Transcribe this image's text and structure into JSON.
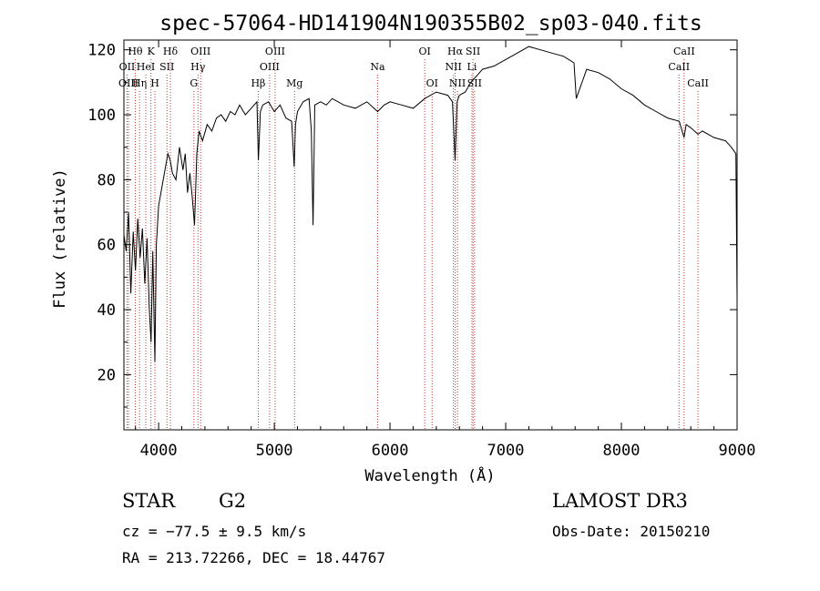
{
  "chart_data": {
    "type": "line",
    "title": "spec-57064-HD141904N190355B02_sp03-040.fits",
    "xlabel": "Wavelength (Å)",
    "ylabel": "Flux (relative)",
    "xlim": [
      3700,
      9000
    ],
    "ylim": [
      3,
      123
    ],
    "xticks": [
      4000,
      5000,
      6000,
      7000,
      8000,
      9000
    ],
    "yticks": [
      20,
      40,
      60,
      80,
      100,
      120
    ],
    "grid": false,
    "series": [
      {
        "name": "flux",
        "x": [
          3700,
          3720,
          3740,
          3760,
          3780,
          3800,
          3820,
          3840,
          3860,
          3880,
          3900,
          3920,
          3935,
          3950,
          3968,
          3980,
          4000,
          4030,
          4060,
          4080,
          4100,
          4120,
          4150,
          4180,
          4210,
          4230,
          4250,
          4270,
          4290,
          4310,
          4330,
          4350,
          4380,
          4420,
          4460,
          4500,
          4540,
          4580,
          4620,
          4660,
          4700,
          4750,
          4800,
          4850,
          4862,
          4880,
          4900,
          4950,
          5000,
          5050,
          5100,
          5150,
          5172,
          5183,
          5200,
          5250,
          5300,
          5320,
          5335,
          5350,
          5400,
          5450,
          5500,
          5600,
          5700,
          5800,
          5893,
          5950,
          6000,
          6100,
          6200,
          6300,
          6400,
          6500,
          6540,
          6563,
          6580,
          6600,
          6650,
          6700,
          6750,
          6800,
          6900,
          7000,
          7100,
          7200,
          7300,
          7400,
          7500,
          7590,
          7610,
          7700,
          7800,
          7900,
          8000,
          8100,
          8200,
          8300,
          8400,
          8500,
          8542,
          8560,
          8600,
          8662,
          8700,
          8800,
          8900,
          8950,
          8990,
          9000
        ],
        "y": [
          63,
          58,
          70,
          45,
          64,
          52,
          68,
          56,
          65,
          48,
          62,
          40,
          30,
          58,
          24,
          60,
          72,
          78,
          84,
          88,
          86,
          82,
          80,
          90,
          83,
          88,
          76,
          82,
          75,
          66,
          88,
          95,
          92,
          97,
          95,
          99,
          100,
          98,
          101,
          100,
          103,
          100,
          102,
          104,
          86,
          101,
          103,
          104,
          101,
          103,
          99,
          98,
          84,
          97,
          101,
          104,
          105,
          95,
          66,
          103,
          104,
          103,
          105,
          103,
          102,
          104,
          101,
          103,
          104,
          103,
          102,
          105,
          107,
          106,
          104,
          86,
          104,
          106,
          107,
          110,
          112,
          114,
          115,
          117,
          119,
          121,
          120,
          119,
          118,
          116,
          105,
          114,
          113,
          111,
          108,
          106,
          103,
          101,
          99,
          98,
          93,
          97,
          96,
          94,
          95,
          93,
          92,
          90,
          88,
          43
        ]
      }
    ],
    "lines": [
      {
        "name": "Hθ",
        "wl": 3798,
        "row": 1
      },
      {
        "name": "OII",
        "wl": 3727,
        "row": 2
      },
      {
        "name": "OIII",
        "wl": 3740,
        "row": 3
      },
      {
        "name": "Hη",
        "wl": 3835,
        "row": 3
      },
      {
        "name": "HeI",
        "wl": 3889,
        "row": 2
      },
      {
        "name": "K",
        "wl": 3934,
        "row": 1
      },
      {
        "name": "H",
        "wl": 3968,
        "row": 3
      },
      {
        "name": "SII",
        "wl": 4072,
        "row": 2
      },
      {
        "name": "Hδ",
        "wl": 4102,
        "row": 1
      },
      {
        "name": "OIII",
        "wl": 4363,
        "row": 1
      },
      {
        "name": "Hγ",
        "wl": 4340,
        "row": 2
      },
      {
        "name": "G",
        "wl": 4305,
        "row": 3
      },
      {
        "name": "Hβ",
        "wl": 4861,
        "row": 3
      },
      {
        "name": "OIII",
        "wl": 4959,
        "row": 2
      },
      {
        "name": "OIII",
        "wl": 5007,
        "row": 1
      },
      {
        "name": "Mg",
        "wl": 5175,
        "row": 3
      },
      {
        "name": "Na",
        "wl": 5893,
        "row": 2
      },
      {
        "name": "OI",
        "wl": 6300,
        "row": 1
      },
      {
        "name": "OI",
        "wl": 6364,
        "row": 3
      },
      {
        "name": "Hα",
        "wl": 6563,
        "row": 1
      },
      {
        "name": "NII",
        "wl": 6548,
        "row": 2
      },
      {
        "name": "NII",
        "wl": 6583,
        "row": 3
      },
      {
        "name": "SII",
        "wl": 6717,
        "row": 1
      },
      {
        "name": "Li",
        "wl": 6708,
        "row": 2
      },
      {
        "name": "SII",
        "wl": 6731,
        "row": 3
      },
      {
        "name": "CaII",
        "wl": 8542,
        "row": 1
      },
      {
        "name": "CaII",
        "wl": 8498,
        "row": 2
      },
      {
        "name": "CaII",
        "wl": 8662,
        "row": 3
      }
    ]
  },
  "info": {
    "objtype": "STAR",
    "subclass": "G2",
    "cz": "cz = −77.5 ± 9.5 km/s",
    "coords": "RA = 213.72266, DEC =  18.44767",
    "survey": "LAMOST DR3",
    "obsdate": "Obs-Date: 20150210"
  },
  "colors": {
    "line_marker": "#c0392b",
    "spectrum": "#000000"
  }
}
